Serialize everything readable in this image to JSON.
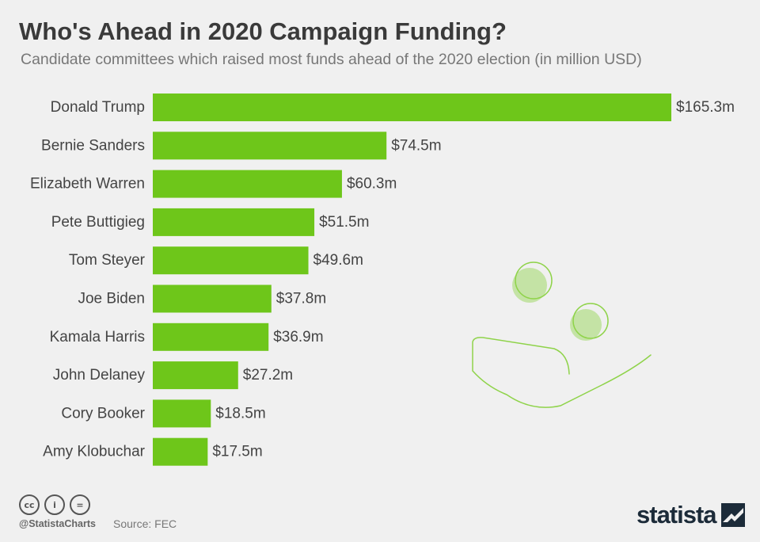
{
  "title": "Who's Ahead in 2020 Campaign Funding?",
  "subtitle": "Candidate committees which raised most funds ahead of the 2020 election (in million USD)",
  "colors": {
    "bar": "#6ec61a",
    "illustration": "#8fd34a",
    "background": "#f0f0f0"
  },
  "chart_data": {
    "type": "bar",
    "orientation": "horizontal",
    "categories": [
      "Donald Trump",
      "Bernie Sanders",
      "Elizabeth Warren",
      "Pete Buttigieg",
      "Tom Steyer",
      "Joe Biden",
      "Kamala Harris",
      "John Delaney",
      "Cory Booker",
      "Amy Klobuchar"
    ],
    "values": [
      165.3,
      74.5,
      60.3,
      51.5,
      49.6,
      37.8,
      36.9,
      27.2,
      18.5,
      17.5
    ],
    "labels": [
      "$165.3m",
      "$74.5m",
      "$60.3m",
      "$51.5m",
      "$49.6m",
      "$37.8m",
      "$36.9m",
      "$27.2m",
      "$18.5m",
      "$17.5m"
    ],
    "title": "Who's Ahead in 2020 Campaign Funding?",
    "xlim": [
      0,
      165.3
    ],
    "grid": false,
    "legend": "none"
  },
  "footer": {
    "icons": [
      "cc-icon",
      "attribution-icon",
      "no-derivatives-icon"
    ],
    "icon_glyphs": [
      "cc",
      "i",
      "="
    ],
    "handle": "@StatistaCharts",
    "source": "Source: FEC",
    "logo": "statista",
    "logo_icon": "statista-logo-icon"
  },
  "illustration": {
    "icon": "hand-with-coins-icon"
  }
}
